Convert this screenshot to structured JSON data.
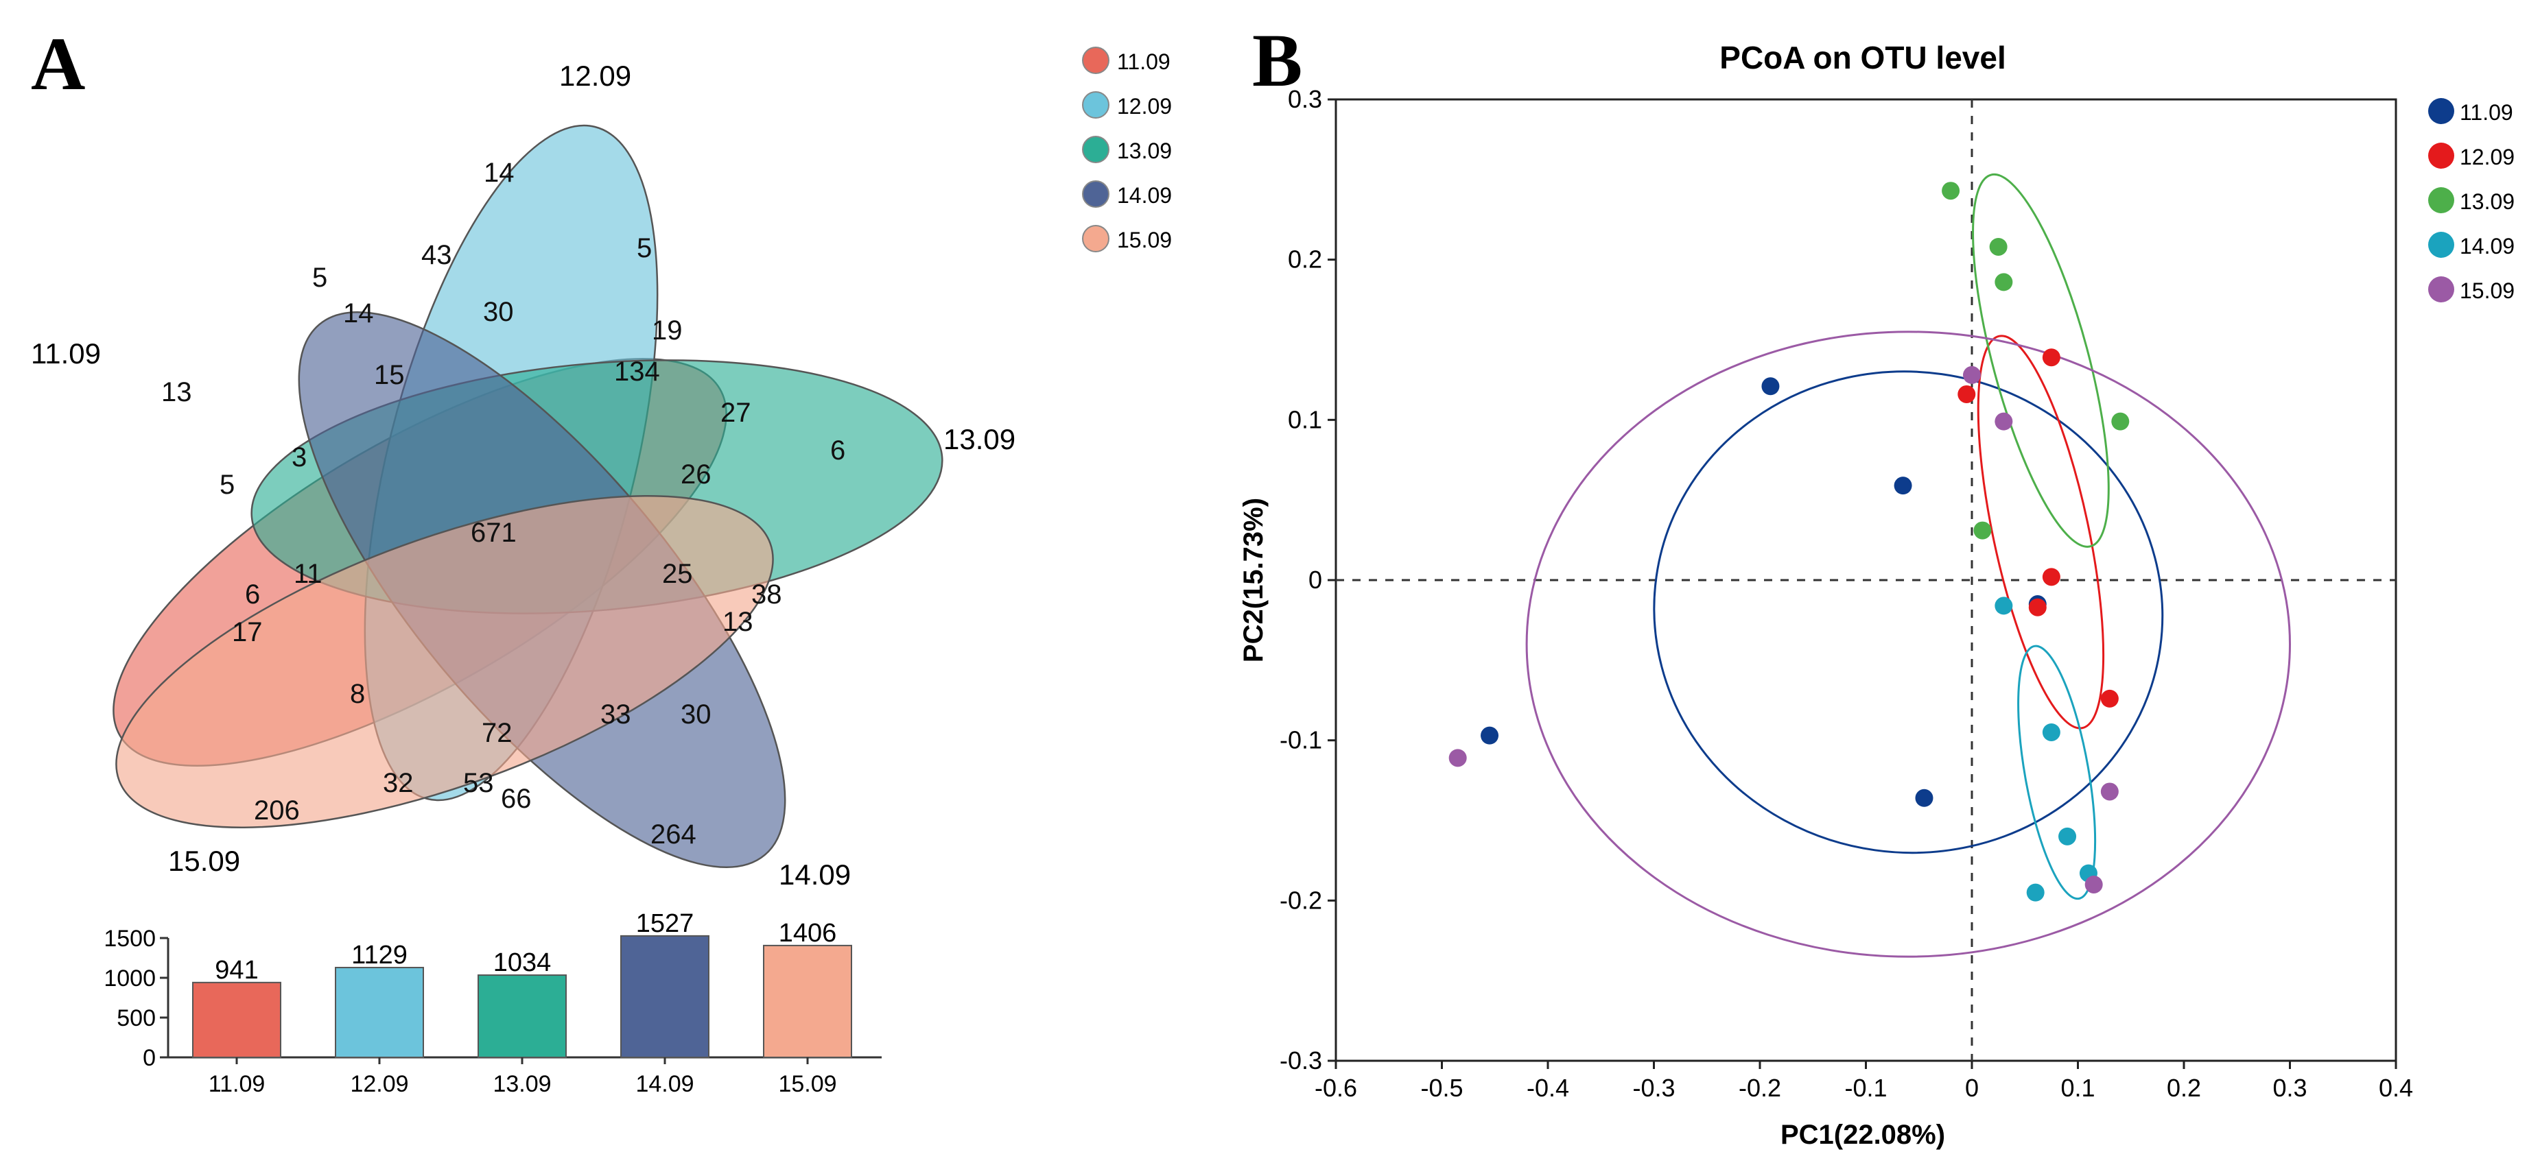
{
  "chart_data": [
    {
      "type": "venn",
      "panel_label": "A",
      "sets": [
        "11.09",
        "12.09",
        "13.09",
        "14.09",
        "15.09"
      ],
      "colors": [
        "#E8685A",
        "#6CC4DC",
        "#2CAE95",
        "#4F6496",
        "#F4A98F"
      ],
      "legend": [
        "11.09",
        "12.09",
        "13.09",
        "14.09",
        "15.09"
      ],
      "region_counts": [
        {
          "label": "11.09 only",
          "value": 13
        },
        {
          "label": "12.09 only",
          "value": 14
        },
        {
          "label": "13.09 only",
          "value": 6
        },
        {
          "label": "14.09 only",
          "value": 264
        },
        {
          "label": "15.09 only",
          "value": 206
        },
        {
          "label": "all five",
          "value": 671
        },
        {
          "label": "region",
          "value": 43
        },
        {
          "label": "region",
          "value": 30
        },
        {
          "label": "region",
          "value": 5
        },
        {
          "label": "region",
          "value": 5
        },
        {
          "label": "region",
          "value": 14
        },
        {
          "label": "region",
          "value": 19
        },
        {
          "label": "region",
          "value": 15
        },
        {
          "label": "region",
          "value": 134
        },
        {
          "label": "region",
          "value": 27
        },
        {
          "label": "region",
          "value": 5
        },
        {
          "label": "region",
          "value": 3
        },
        {
          "label": "region",
          "value": 26
        },
        {
          "label": "region",
          "value": 11
        },
        {
          "label": "region",
          "value": 25
        },
        {
          "label": "region",
          "value": 6
        },
        {
          "label": "region",
          "value": 38
        },
        {
          "label": "region",
          "value": 17
        },
        {
          "label": "region",
          "value": 13
        },
        {
          "label": "region",
          "value": 8
        },
        {
          "label": "region",
          "value": 72
        },
        {
          "label": "region",
          "value": 33
        },
        {
          "label": "region",
          "value": 30
        },
        {
          "label": "region",
          "value": 32
        },
        {
          "label": "region",
          "value": 53
        },
        {
          "label": "region",
          "value": 66
        }
      ]
    },
    {
      "type": "bar",
      "categories": [
        "11.09",
        "12.09",
        "13.09",
        "14.09",
        "15.09"
      ],
      "values": [
        941,
        1129,
        1034,
        1527,
        1406
      ],
      "colors": [
        "#E8685A",
        "#6CC4DC",
        "#2CAE95",
        "#4F6496",
        "#F4A98F"
      ],
      "ylim": [
        0,
        1500
      ],
      "yticks": [
        0,
        500,
        1000,
        1500
      ]
    },
    {
      "type": "scatter",
      "panel_label": "B",
      "title": "PCoA on OTU level",
      "xlabel": "PC1(22.08%)",
      "ylabel": "PC2(15.73%)",
      "xlim": [
        -0.6,
        0.4
      ],
      "ylim": [
        -0.3,
        0.3
      ],
      "xticks": [
        -0.6,
        -0.5,
        -0.4,
        -0.3,
        -0.2,
        -0.1,
        0,
        0.1,
        0.2,
        0.3,
        0.4
      ],
      "yticks": [
        -0.3,
        -0.2,
        -0.1,
        0,
        0.1,
        0.2,
        0.3
      ],
      "legend_position": "right",
      "series": [
        {
          "name": "11.09",
          "color": "#0D3C8C",
          "points": [
            [
              -0.19,
              0.121
            ],
            [
              -0.065,
              0.059
            ],
            [
              0.062,
              -0.015
            ],
            [
              -0.045,
              -0.136
            ],
            [
              -0.455,
              -0.097
            ]
          ],
          "ellipse": {
            "cx": -0.06,
            "cy": -0.02,
            "rx": 0.24,
            "ry": 0.15,
            "angle_deg": 8
          }
        },
        {
          "name": "12.09",
          "color": "#E41A1C",
          "points": [
            [
              0.075,
              0.139
            ],
            [
              -0.005,
              0.116
            ],
            [
              0.075,
              0.002
            ],
            [
              0.062,
              -0.017
            ],
            [
              0.13,
              -0.074
            ]
          ],
          "ellipse": {
            "cx": 0.065,
            "cy": 0.03,
            "rx": 0.045,
            "ry": 0.125,
            "angle_deg": -12
          }
        },
        {
          "name": "13.09",
          "color": "#4DAF4A",
          "points": [
            [
              -0.02,
              0.243
            ],
            [
              0.025,
              0.208
            ],
            [
              0.03,
              0.186
            ],
            [
              0.14,
              0.099
            ],
            [
              0.01,
              0.031
            ]
          ],
          "ellipse": {
            "cx": 0.065,
            "cy": 0.137,
            "rx": 0.045,
            "ry": 0.12,
            "angle_deg": -15
          }
        },
        {
          "name": "14.09",
          "color": "#1BA3BE",
          "points": [
            [
              0.03,
              -0.016
            ],
            [
              0.075,
              -0.095
            ],
            [
              0.09,
              -0.16
            ],
            [
              0.11,
              -0.183
            ],
            [
              0.06,
              -0.195
            ]
          ],
          "ellipse": {
            "cx": 0.08,
            "cy": -0.12,
            "rx": 0.03,
            "ry": 0.08,
            "angle_deg": -10
          }
        },
        {
          "name": "15.09",
          "color": "#9B5AA5",
          "points": [
            [
              0.0,
              0.128
            ],
            [
              0.03,
              0.099
            ],
            [
              0.13,
              -0.132
            ],
            [
              0.115,
              -0.19
            ],
            [
              -0.485,
              -0.111
            ]
          ],
          "ellipse": {
            "cx": -0.06,
            "cy": -0.04,
            "rx": 0.36,
            "ry": 0.195,
            "angle_deg": 0
          }
        }
      ]
    }
  ]
}
